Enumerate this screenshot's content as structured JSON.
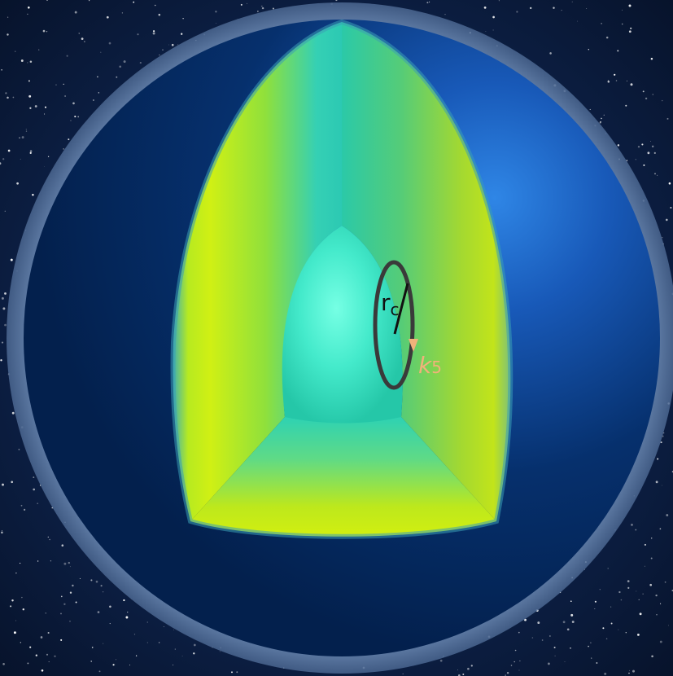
{
  "labels": {
    "radius_letter": "r",
    "radius_subscript": "c",
    "wavevector_letter": "k",
    "wavevector_subscript": "5"
  },
  "colors": {
    "space_background": "#0b1d3a",
    "halo": "#5f7ea6",
    "sphere_dark": "#03204d",
    "sphere_highlight": "#2f86e6",
    "shell_yellow": "#c8ee12",
    "shell_teal": "#2fd4b8",
    "core_center": "#6effe0",
    "loop_stroke": "#3a3a3a",
    "k_label": "#f0b27a",
    "arrow": "#f0b27a"
  },
  "icons": {
    "direction_arrow": "arrowhead-down-icon"
  }
}
